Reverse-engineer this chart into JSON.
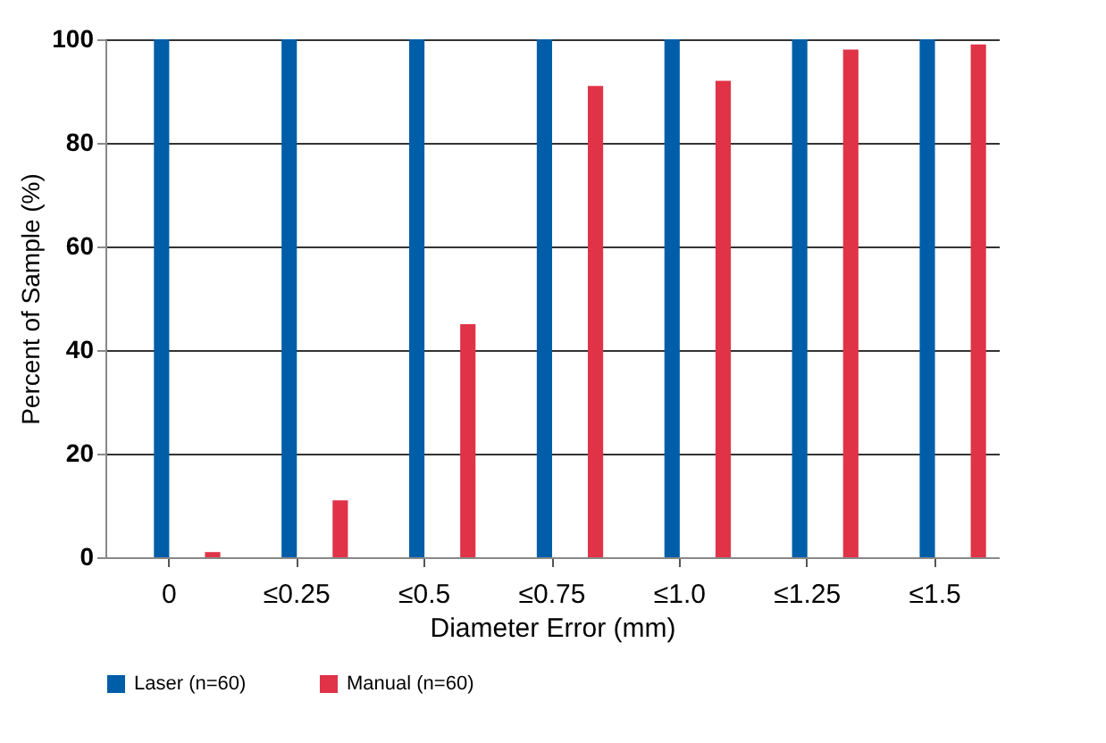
{
  "chart_data": {
    "type": "bar",
    "xlabel": "Diameter Error (mm)",
    "ylabel": "Percent of Sample (%)",
    "categories": [
      "0",
      "≤0.25",
      "≤0.5",
      "≤0.75",
      "≤1.0",
      "≤1.25",
      "≤1.5"
    ],
    "series": [
      {
        "name": "Laser (n=60)",
        "color": "#005ea8",
        "values": [
          100,
          100,
          100,
          100,
          100,
          100,
          100
        ]
      },
      {
        "name": "Manual (n=60)",
        "color": "#e03347",
        "values": [
          1,
          11,
          45,
          91,
          92,
          98,
          99
        ]
      }
    ],
    "ylim": [
      0,
      100
    ],
    "yticks": [
      0,
      20,
      40,
      60,
      80,
      100
    ],
    "grid": "y",
    "legend": "bottom"
  }
}
